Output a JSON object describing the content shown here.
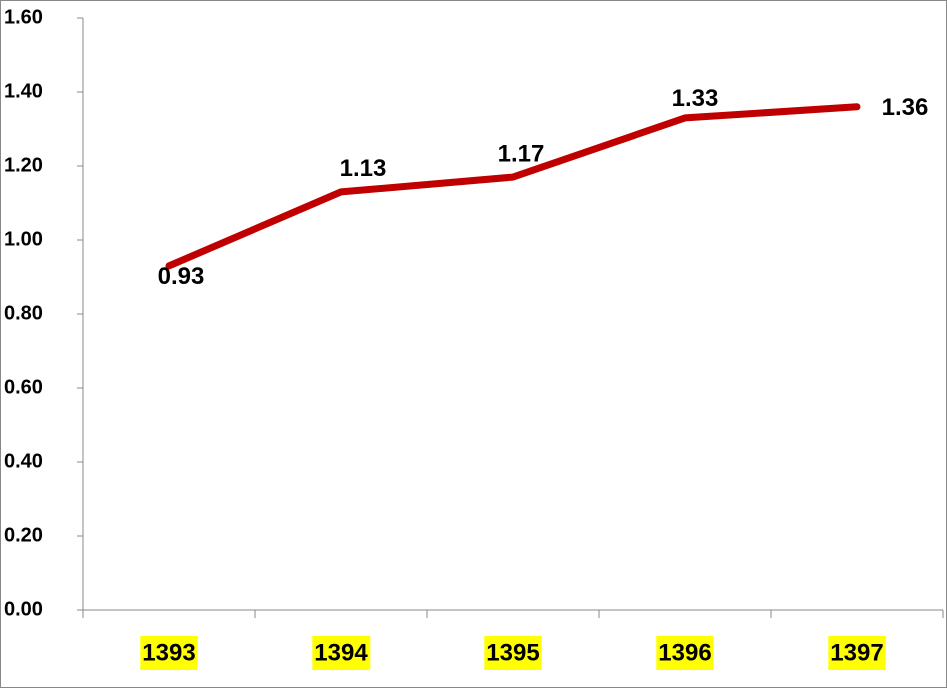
{
  "chart_data": {
    "type": "line",
    "categories": [
      "1393",
      "1394",
      "1395",
      "1396",
      "1397"
    ],
    "values": [
      0.93,
      1.13,
      1.17,
      1.33,
      1.36
    ],
    "color": "#c00000",
    "ylim": [
      0,
      1.6
    ],
    "yticks": [
      {
        "value": 0,
        "label": "0.00"
      },
      {
        "value": 0.2,
        "label": "0.20"
      },
      {
        "value": 0.4,
        "label": "0.40"
      },
      {
        "value": 0.6,
        "label": "0.60"
      },
      {
        "value": 0.8,
        "label": "0.80"
      },
      {
        "value": 1,
        "label": "1.00"
      },
      {
        "value": 1.2,
        "label": "1.20"
      },
      {
        "value": 1.4,
        "label": "1.40"
      },
      {
        "value": 1.6,
        "label": "1.60"
      }
    ],
    "category_highlight": "#ffff00",
    "grid": false
  }
}
